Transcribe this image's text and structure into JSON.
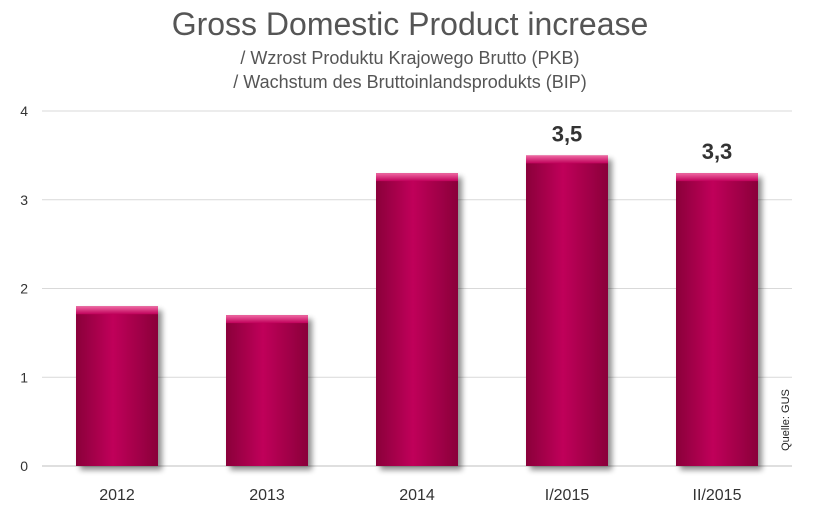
{
  "colors": {
    "bar": "#b8004e",
    "bar_top": "#e04a8c",
    "grid": "#d9d9d9",
    "text": "#555555"
  },
  "chart_data": {
    "type": "bar",
    "title": "Gross Domestic Product increase",
    "subtitle_lines": [
      "/ Wzrost Produktu Krajowego Brutto (PKB)",
      "/ Wachstum des Bruttoinlandsprodukts (BIP)"
    ],
    "categories": [
      "2012",
      "2013",
      "2014",
      "I/2015",
      "II/2015"
    ],
    "values": [
      1.8,
      1.7,
      3.3,
      3.5,
      3.3
    ],
    "data_labels": [
      "",
      "",
      "",
      "3,5",
      "3,3"
    ],
    "ylim": [
      0,
      4
    ],
    "yticks": [
      "0",
      "1",
      "2",
      "3",
      "4"
    ],
    "grid": true,
    "source": "Quelle: GUS"
  }
}
